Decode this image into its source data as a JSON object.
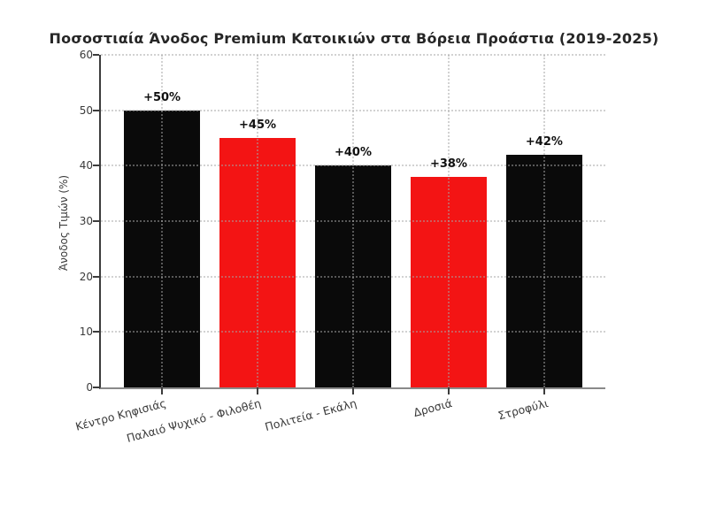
{
  "chart_data": {
    "type": "bar",
    "title": "Ποσοστιαία Άνοδος Premium Κατοικιών στα Βόρεια Προάστια (2019-2025)",
    "ylabel": "Άνοδος Τιμών (%)",
    "xlabel": "",
    "categories": [
      "Κέντρο Κηφισιάς",
      "Παλαιό Ψυχικό - Φιλοθέη",
      "Πολιτεία - Εκάλη",
      "Δροσιά",
      "Στροφύλι"
    ],
    "values": [
      50,
      45,
      40,
      38,
      42
    ],
    "bar_labels": [
      "+50%",
      "+45%",
      "+40%",
      "+38%",
      "+42%"
    ],
    "bar_colors": [
      "#0a0a0a",
      "#f31414",
      "#0a0a0a",
      "#f31414",
      "#0a0a0a"
    ],
    "ylim": [
      0,
      60
    ],
    "yticks": [
      0,
      10,
      20,
      30,
      40,
      50,
      60
    ],
    "xtick_rotation_deg": 15,
    "grid": {
      "axis": "both",
      "style": "dotted",
      "color": "#c8c8c8"
    },
    "legend": "none",
    "background": "#ffffff"
  }
}
